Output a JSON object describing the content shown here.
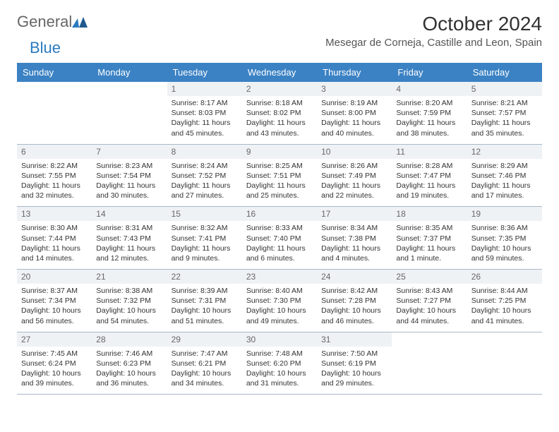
{
  "logo": {
    "part1": "General",
    "part2": "Blue"
  },
  "title": "October 2024",
  "location": "Mesegar de Corneja, Castille and Leon, Spain",
  "day_headers": [
    "Sunday",
    "Monday",
    "Tuesday",
    "Wednesday",
    "Thursday",
    "Friday",
    "Saturday"
  ],
  "colors": {
    "header_bg": "#3b82c4",
    "header_text": "#ffffff",
    "daynum_bg": "#eff2f5",
    "border": "#a8b8c8",
    "logo_blue": "#2b7bbf",
    "logo_gray": "#666666",
    "body_text": "#333333",
    "page_bg": "#ffffff"
  },
  "typography": {
    "title_fontsize": 28,
    "location_fontsize": 15,
    "header_fontsize": 13,
    "daynum_fontsize": 12,
    "cell_fontsize": 10.5
  },
  "weeks": [
    [
      null,
      null,
      {
        "n": "1",
        "sr": "Sunrise: 8:17 AM",
        "ss": "Sunset: 8:03 PM",
        "d1": "Daylight: 11 hours",
        "d2": "and 45 minutes."
      },
      {
        "n": "2",
        "sr": "Sunrise: 8:18 AM",
        "ss": "Sunset: 8:02 PM",
        "d1": "Daylight: 11 hours",
        "d2": "and 43 minutes."
      },
      {
        "n": "3",
        "sr": "Sunrise: 8:19 AM",
        "ss": "Sunset: 8:00 PM",
        "d1": "Daylight: 11 hours",
        "d2": "and 40 minutes."
      },
      {
        "n": "4",
        "sr": "Sunrise: 8:20 AM",
        "ss": "Sunset: 7:59 PM",
        "d1": "Daylight: 11 hours",
        "d2": "and 38 minutes."
      },
      {
        "n": "5",
        "sr": "Sunrise: 8:21 AM",
        "ss": "Sunset: 7:57 PM",
        "d1": "Daylight: 11 hours",
        "d2": "and 35 minutes."
      }
    ],
    [
      {
        "n": "6",
        "sr": "Sunrise: 8:22 AM",
        "ss": "Sunset: 7:55 PM",
        "d1": "Daylight: 11 hours",
        "d2": "and 32 minutes."
      },
      {
        "n": "7",
        "sr": "Sunrise: 8:23 AM",
        "ss": "Sunset: 7:54 PM",
        "d1": "Daylight: 11 hours",
        "d2": "and 30 minutes."
      },
      {
        "n": "8",
        "sr": "Sunrise: 8:24 AM",
        "ss": "Sunset: 7:52 PM",
        "d1": "Daylight: 11 hours",
        "d2": "and 27 minutes."
      },
      {
        "n": "9",
        "sr": "Sunrise: 8:25 AM",
        "ss": "Sunset: 7:51 PM",
        "d1": "Daylight: 11 hours",
        "d2": "and 25 minutes."
      },
      {
        "n": "10",
        "sr": "Sunrise: 8:26 AM",
        "ss": "Sunset: 7:49 PM",
        "d1": "Daylight: 11 hours",
        "d2": "and 22 minutes."
      },
      {
        "n": "11",
        "sr": "Sunrise: 8:28 AM",
        "ss": "Sunset: 7:47 PM",
        "d1": "Daylight: 11 hours",
        "d2": "and 19 minutes."
      },
      {
        "n": "12",
        "sr": "Sunrise: 8:29 AM",
        "ss": "Sunset: 7:46 PM",
        "d1": "Daylight: 11 hours",
        "d2": "and 17 minutes."
      }
    ],
    [
      {
        "n": "13",
        "sr": "Sunrise: 8:30 AM",
        "ss": "Sunset: 7:44 PM",
        "d1": "Daylight: 11 hours",
        "d2": "and 14 minutes."
      },
      {
        "n": "14",
        "sr": "Sunrise: 8:31 AM",
        "ss": "Sunset: 7:43 PM",
        "d1": "Daylight: 11 hours",
        "d2": "and 12 minutes."
      },
      {
        "n": "15",
        "sr": "Sunrise: 8:32 AM",
        "ss": "Sunset: 7:41 PM",
        "d1": "Daylight: 11 hours",
        "d2": "and 9 minutes."
      },
      {
        "n": "16",
        "sr": "Sunrise: 8:33 AM",
        "ss": "Sunset: 7:40 PM",
        "d1": "Daylight: 11 hours",
        "d2": "and 6 minutes."
      },
      {
        "n": "17",
        "sr": "Sunrise: 8:34 AM",
        "ss": "Sunset: 7:38 PM",
        "d1": "Daylight: 11 hours",
        "d2": "and 4 minutes."
      },
      {
        "n": "18",
        "sr": "Sunrise: 8:35 AM",
        "ss": "Sunset: 7:37 PM",
        "d1": "Daylight: 11 hours",
        "d2": "and 1 minute."
      },
      {
        "n": "19",
        "sr": "Sunrise: 8:36 AM",
        "ss": "Sunset: 7:35 PM",
        "d1": "Daylight: 10 hours",
        "d2": "and 59 minutes."
      }
    ],
    [
      {
        "n": "20",
        "sr": "Sunrise: 8:37 AM",
        "ss": "Sunset: 7:34 PM",
        "d1": "Daylight: 10 hours",
        "d2": "and 56 minutes."
      },
      {
        "n": "21",
        "sr": "Sunrise: 8:38 AM",
        "ss": "Sunset: 7:32 PM",
        "d1": "Daylight: 10 hours",
        "d2": "and 54 minutes."
      },
      {
        "n": "22",
        "sr": "Sunrise: 8:39 AM",
        "ss": "Sunset: 7:31 PM",
        "d1": "Daylight: 10 hours",
        "d2": "and 51 minutes."
      },
      {
        "n": "23",
        "sr": "Sunrise: 8:40 AM",
        "ss": "Sunset: 7:30 PM",
        "d1": "Daylight: 10 hours",
        "d2": "and 49 minutes."
      },
      {
        "n": "24",
        "sr": "Sunrise: 8:42 AM",
        "ss": "Sunset: 7:28 PM",
        "d1": "Daylight: 10 hours",
        "d2": "and 46 minutes."
      },
      {
        "n": "25",
        "sr": "Sunrise: 8:43 AM",
        "ss": "Sunset: 7:27 PM",
        "d1": "Daylight: 10 hours",
        "d2": "and 44 minutes."
      },
      {
        "n": "26",
        "sr": "Sunrise: 8:44 AM",
        "ss": "Sunset: 7:25 PM",
        "d1": "Daylight: 10 hours",
        "d2": "and 41 minutes."
      }
    ],
    [
      {
        "n": "27",
        "sr": "Sunrise: 7:45 AM",
        "ss": "Sunset: 6:24 PM",
        "d1": "Daylight: 10 hours",
        "d2": "and 39 minutes."
      },
      {
        "n": "28",
        "sr": "Sunrise: 7:46 AM",
        "ss": "Sunset: 6:23 PM",
        "d1": "Daylight: 10 hours",
        "d2": "and 36 minutes."
      },
      {
        "n": "29",
        "sr": "Sunrise: 7:47 AM",
        "ss": "Sunset: 6:21 PM",
        "d1": "Daylight: 10 hours",
        "d2": "and 34 minutes."
      },
      {
        "n": "30",
        "sr": "Sunrise: 7:48 AM",
        "ss": "Sunset: 6:20 PM",
        "d1": "Daylight: 10 hours",
        "d2": "and 31 minutes."
      },
      {
        "n": "31",
        "sr": "Sunrise: 7:50 AM",
        "ss": "Sunset: 6:19 PM",
        "d1": "Daylight: 10 hours",
        "d2": "and 29 minutes."
      },
      null,
      null
    ]
  ]
}
